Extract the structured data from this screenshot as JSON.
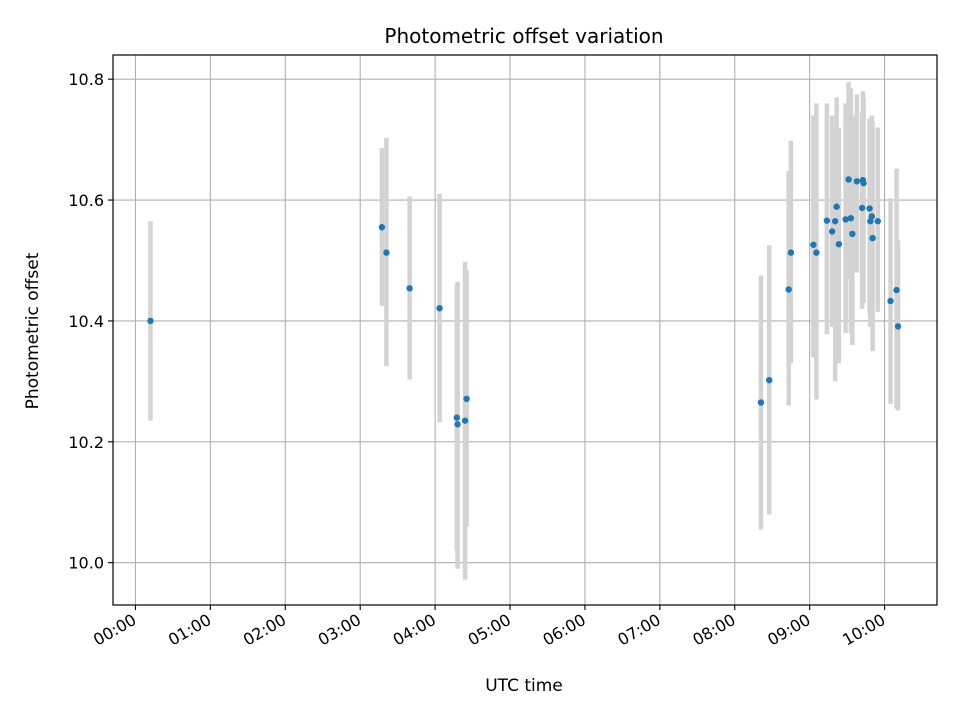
{
  "chart_data": {
    "type": "scatter",
    "title": "Photometric offset variation",
    "xlabel": "UTC time",
    "ylabel": "Photometric offset",
    "x_unit": "hours UTC",
    "xlim": [
      -0.3,
      10.7
    ],
    "ylim": [
      9.93,
      10.84
    ],
    "x_ticks": [
      0,
      1,
      2,
      3,
      4,
      5,
      6,
      7,
      8,
      9,
      10
    ],
    "x_tick_labels": [
      "00:00",
      "01:00",
      "02:00",
      "03:00",
      "04:00",
      "05:00",
      "06:00",
      "07:00",
      "08:00",
      "09:00",
      "10:00"
    ],
    "y_ticks": [
      10.0,
      10.2,
      10.4,
      10.6,
      10.8
    ],
    "y_tick_labels": [
      "10.0",
      "10.2",
      "10.4",
      "10.6",
      "10.8"
    ],
    "grid": true,
    "marker_color": "#1f77b4",
    "errorbar_color": "#d3d3d3",
    "points": [
      {
        "x": 0.2,
        "y": 10.4,
        "lo": 10.235,
        "hi": 10.565
      },
      {
        "x": 3.29,
        "y": 10.555,
        "lo": 10.425,
        "hi": 10.686
      },
      {
        "x": 3.35,
        "y": 10.513,
        "lo": 10.325,
        "hi": 10.703
      },
      {
        "x": 3.66,
        "y": 10.454,
        "lo": 10.303,
        "hi": 10.606
      },
      {
        "x": 4.06,
        "y": 10.421,
        "lo": 10.232,
        "hi": 10.61
      },
      {
        "x": 4.29,
        "y": 10.24,
        "lo": 10.02,
        "hi": 10.461
      },
      {
        "x": 4.3,
        "y": 10.229,
        "lo": 9.99,
        "hi": 10.465
      },
      {
        "x": 4.4,
        "y": 10.235,
        "lo": 9.972,
        "hi": 10.498
      },
      {
        "x": 4.42,
        "y": 10.271,
        "lo": 10.06,
        "hi": 10.484
      },
      {
        "x": 8.35,
        "y": 10.265,
        "lo": 10.055,
        "hi": 10.475
      },
      {
        "x": 8.46,
        "y": 10.302,
        "lo": 10.08,
        "hi": 10.525
      },
      {
        "x": 8.72,
        "y": 10.452,
        "lo": 10.26,
        "hi": 10.648
      },
      {
        "x": 8.75,
        "y": 10.513,
        "lo": 10.33,
        "hi": 10.698
      },
      {
        "x": 9.05,
        "y": 10.526,
        "lo": 10.34,
        "hi": 10.74
      },
      {
        "x": 9.09,
        "y": 10.513,
        "lo": 10.27,
        "hi": 10.76
      },
      {
        "x": 9.23,
        "y": 10.566,
        "lo": 10.378,
        "hi": 10.76
      },
      {
        "x": 9.3,
        "y": 10.548,
        "lo": 10.39,
        "hi": 10.74
      },
      {
        "x": 9.34,
        "y": 10.565,
        "lo": 10.3,
        "hi": 10.717
      },
      {
        "x": 9.36,
        "y": 10.589,
        "lo": 10.4,
        "hi": 10.77
      },
      {
        "x": 9.39,
        "y": 10.527,
        "lo": 10.33,
        "hi": 10.72
      },
      {
        "x": 9.48,
        "y": 10.568,
        "lo": 10.38,
        "hi": 10.76
      },
      {
        "x": 9.52,
        "y": 10.634,
        "lo": 10.47,
        "hi": 10.795
      },
      {
        "x": 9.55,
        "y": 10.57,
        "lo": 10.38,
        "hi": 10.785
      },
      {
        "x": 9.57,
        "y": 10.544,
        "lo": 10.36,
        "hi": 10.74
      },
      {
        "x": 9.63,
        "y": 10.631,
        "lo": 10.48,
        "hi": 10.775
      },
      {
        "x": 9.7,
        "y": 10.587,
        "lo": 10.42,
        "hi": 10.745
      },
      {
        "x": 9.71,
        "y": 10.633,
        "lo": 10.44,
        "hi": 10.78
      },
      {
        "x": 9.72,
        "y": 10.628,
        "lo": 10.43,
        "hi": 10.77
      },
      {
        "x": 9.8,
        "y": 10.586,
        "lo": 10.41,
        "hi": 10.735
      },
      {
        "x": 9.81,
        "y": 10.565,
        "lo": 10.39,
        "hi": 10.72
      },
      {
        "x": 9.83,
        "y": 10.573,
        "lo": 10.41,
        "hi": 10.74
      },
      {
        "x": 9.84,
        "y": 10.537,
        "lo": 10.35,
        "hi": 10.73
      },
      {
        "x": 9.91,
        "y": 10.565,
        "lo": 10.415,
        "hi": 10.72
      },
      {
        "x": 10.08,
        "y": 10.433,
        "lo": 10.263,
        "hi": 10.603
      },
      {
        "x": 10.16,
        "y": 10.451,
        "lo": 10.255,
        "hi": 10.652
      },
      {
        "x": 10.18,
        "y": 10.391,
        "lo": 10.252,
        "hi": 10.533
      }
    ]
  }
}
